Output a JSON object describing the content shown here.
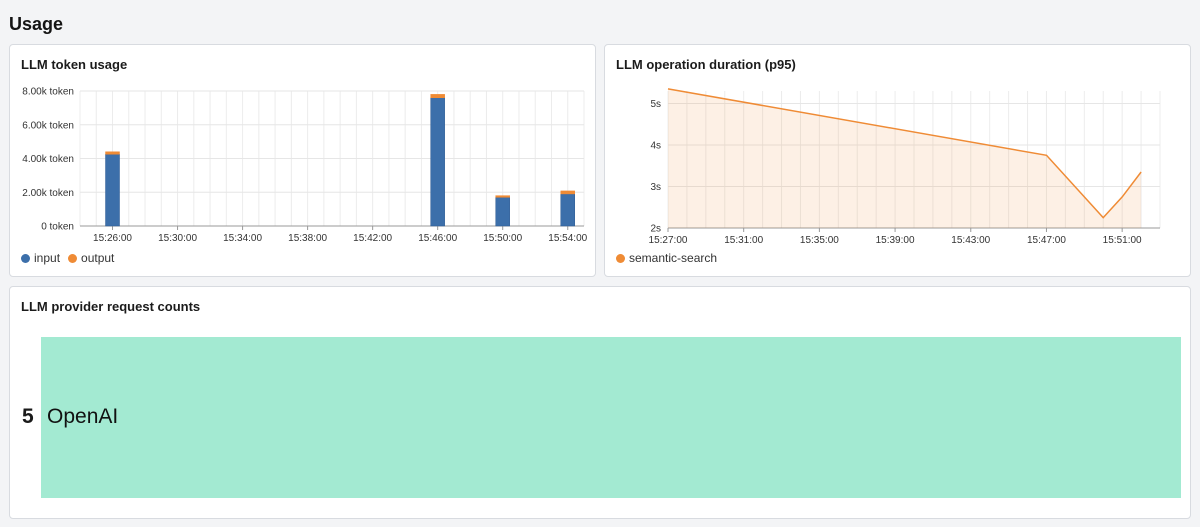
{
  "page": {
    "title": "Usage"
  },
  "token_panel": {
    "title": "LLM token usage",
    "legend": [
      {
        "name": "input",
        "color": "#3c6faa"
      },
      {
        "name": "output",
        "color": "#ef8b35"
      }
    ]
  },
  "duration_panel": {
    "title": "LLM operation duration (p95)",
    "legend": [
      {
        "name": "semantic-search",
        "color": "#ef8b35"
      }
    ]
  },
  "provider_panel": {
    "title": "LLM provider request counts",
    "items": [
      {
        "count": "5",
        "provider": "OpenAI",
        "color": "#a3ead2"
      }
    ]
  },
  "chart_data": [
    {
      "type": "bar",
      "stacked": true,
      "x_unit": "time",
      "xlim": [
        "15:24:00",
        "15:55:00"
      ],
      "xticks": [
        "15:26:00",
        "15:30:00",
        "15:34:00",
        "15:38:00",
        "15:42:00",
        "15:46:00",
        "15:50:00",
        "15:54:00"
      ],
      "ylim": [
        0,
        8000
      ],
      "yticks": [
        0,
        2000,
        4000,
        6000,
        8000
      ],
      "ytick_labels": [
        "0 token",
        "2.00k token",
        "4.00k token",
        "6.00k token",
        "8.00k token"
      ],
      "grid": true,
      "x": [
        "15:26:00",
        "15:46:00",
        "15:50:00",
        "15:54:00"
      ],
      "series": [
        {
          "name": "input",
          "color": "#3c6faa",
          "values": [
            4250,
            7600,
            1700,
            1900
          ]
        },
        {
          "name": "output",
          "color": "#ef8b35",
          "values": [
            150,
            200,
            100,
            180
          ]
        }
      ]
    },
    {
      "type": "area",
      "x_unit": "time",
      "xlim": [
        "15:27:00",
        "15:53:00"
      ],
      "xticks": [
        "15:27:00",
        "15:31:00",
        "15:35:00",
        "15:39:00",
        "15:43:00",
        "15:47:00",
        "15:51:00"
      ],
      "ylim": [
        2,
        5.3
      ],
      "yticks": [
        2,
        3,
        4,
        5
      ],
      "ytick_labels": [
        "2s",
        "3s",
        "4s",
        "5s"
      ],
      "grid": true,
      "series": [
        {
          "name": "semantic-search",
          "color": "#ef8b35",
          "x": [
            "15:27:00",
            "15:47:00",
            "15:50:00",
            "15:51:00",
            "15:52:00"
          ],
          "values": [
            5.35,
            3.75,
            2.25,
            2.75,
            3.35
          ]
        }
      ]
    }
  ]
}
